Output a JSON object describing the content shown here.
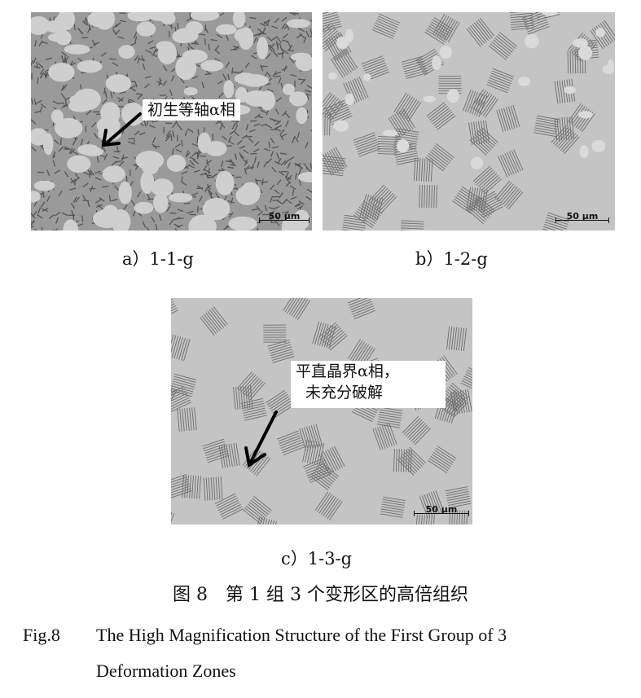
{
  "panels": [
    {
      "id": "a",
      "subcaption": "a）1-1-g",
      "scale_bar": "50 μm",
      "annotation": [
        "初生等轴α相"
      ],
      "texture": "equiaxed"
    },
    {
      "id": "b",
      "subcaption": "b）1-2-g",
      "scale_bar": "50 μm",
      "annotation": [],
      "texture": "lamellar"
    },
    {
      "id": "c",
      "subcaption": "c）1-3-g",
      "scale_bar": "50 μm",
      "annotation": [
        "平直晶界α相，",
        "未充分破解"
      ],
      "texture": "lamellar"
    }
  ],
  "caption": {
    "cn": "图 8　第 1 组 3 个变形区的高倍组织",
    "en_label": "Fig.8",
    "en_line1": "The High Magnification Structure of the First Group of 3",
    "en_line2": "Deformation Zones"
  }
}
